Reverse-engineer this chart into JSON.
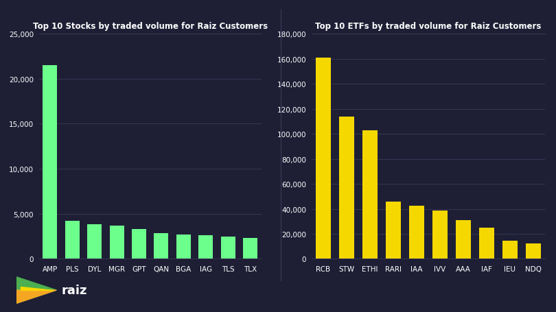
{
  "bg_color": "#1e1f35",
  "plot_bg_color": "#1e1f35",
  "grid_color": "#3a3a58",
  "text_color": "#ffffff",
  "stocks_title": "Top 10 Stocks by traded volume for Raiz Customers",
  "etfs_title": "Top 10 ETFs by traded volume for Raiz Customers",
  "stocks_categories": [
    "AMP",
    "PLS",
    "DYL",
    "MGR",
    "GPT",
    "QAN",
    "BGA",
    "IAG",
    "TLS",
    "TLX"
  ],
  "stocks_values": [
    21500,
    4200,
    3850,
    3700,
    3300,
    2850,
    2700,
    2650,
    2450,
    2300
  ],
  "stocks_color": "#6cff8c",
  "stocks_ylim": [
    0,
    25000
  ],
  "stocks_yticks": [
    0,
    5000,
    10000,
    15000,
    20000,
    25000
  ],
  "etfs_categories": [
    "RCB",
    "STW",
    "ETHI",
    "RARI",
    "IAA",
    "IVV",
    "AAA",
    "IAF",
    "IEU",
    "NDQ"
  ],
  "etfs_values": [
    161000,
    113500,
    103000,
    46000,
    42500,
    38500,
    31000,
    25000,
    14500,
    12500
  ],
  "etfs_color": "#f5d800",
  "etfs_ylim": [
    0,
    180000
  ],
  "etfs_yticks": [
    0,
    20000,
    40000,
    60000,
    80000,
    100000,
    120000,
    140000,
    160000,
    180000
  ],
  "logo_green": "#4caf50",
  "logo_orange": "#f5a623",
  "logo_yellow": "#f5d800"
}
